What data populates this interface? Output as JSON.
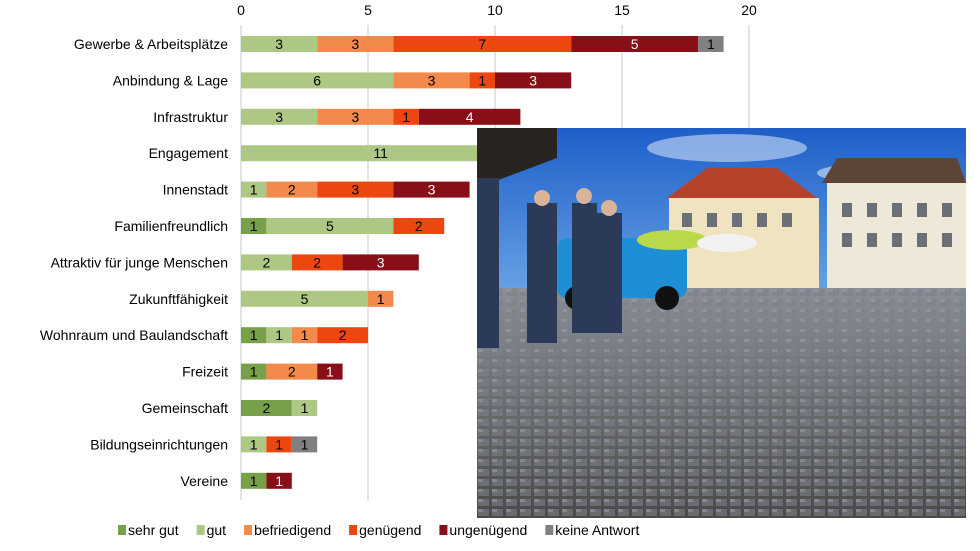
{
  "chart_data": {
    "type": "bar",
    "orientation": "horizontal-stacked",
    "title": "",
    "xlabel": "",
    "ylabel": "",
    "xlim": [
      0,
      20
    ],
    "xticks": [
      0,
      5,
      10,
      15,
      20
    ],
    "grid": true,
    "legend_position": "bottom",
    "categories": [
      "Gewerbe & Arbeitsplätze",
      "Anbindung & Lage",
      "Infrastruktur",
      "Engagement",
      "Innenstadt",
      "Familienfreundlich",
      "Attraktiv für junge Menschen",
      "Zukunftfähigkeit",
      "Wohnraum und Baulandschaft",
      "Freizeit",
      "Gemeinschaft",
      "Bildungseinrichtungen",
      "Vereine"
    ],
    "series": [
      {
        "name": "sehr gut",
        "color": "#78a04a",
        "values": [
          0,
          0,
          0,
          0,
          0,
          1,
          0,
          0,
          1,
          1,
          2,
          0,
          1
        ]
      },
      {
        "name": "gut",
        "color": "#adc785",
        "values": [
          3,
          6,
          3,
          11,
          1,
          5,
          2,
          5,
          1,
          0,
          1,
          1,
          0
        ]
      },
      {
        "name": "befriedigend",
        "color": "#f3894a",
        "values": [
          3,
          3,
          3,
          0,
          2,
          0,
          0,
          1,
          1,
          2,
          0,
          0,
          0
        ]
      },
      {
        "name": "genügend",
        "color": "#ec470e",
        "values": [
          7,
          1,
          1,
          0,
          3,
          2,
          2,
          0,
          2,
          0,
          0,
          1,
          0
        ]
      },
      {
        "name": "ungenügend",
        "color": "#880e17",
        "values": [
          5,
          3,
          4,
          0,
          3,
          0,
          3,
          0,
          0,
          1,
          0,
          0,
          1
        ]
      },
      {
        "name": "keine Antwort",
        "color": "#808080",
        "values": [
          1,
          0,
          0,
          0,
          0,
          0,
          0,
          0,
          0,
          0,
          0,
          1,
          0
        ]
      }
    ]
  }
}
